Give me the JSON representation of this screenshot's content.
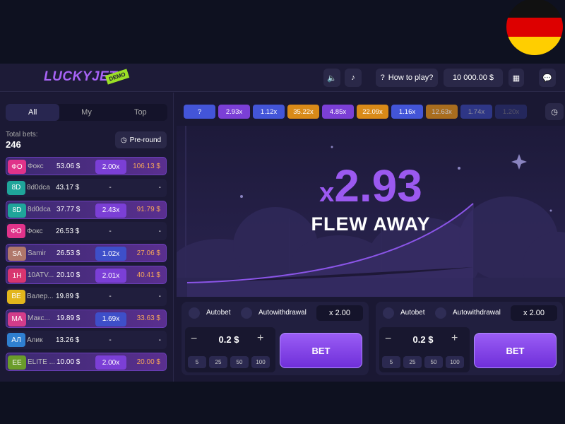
{
  "header": {
    "logo": "LUCKYJET",
    "logo_badge": "DEMO",
    "how_to_play": "How to play?",
    "balance": "10 000.00 $"
  },
  "sidebar": {
    "tabs": [
      "All",
      "My",
      "Top"
    ],
    "total_bets_label": "Total bets:",
    "total_bets": "246",
    "pre_round": "Pre-round",
    "bets": [
      {
        "initials": "ФО",
        "color": "#e0338a",
        "name": "Фокс",
        "bet": "53.06 $",
        "multiplier": "2.00x",
        "payout": "106.13 $",
        "chip_color": "#7b3fd6"
      },
      {
        "initials": "8D",
        "color": "#1fa59a",
        "name": "8d0dca",
        "bet": "43.17 $",
        "multiplier": "-",
        "payout": "-"
      },
      {
        "initials": "8D",
        "color": "#1fa59a",
        "name": "8d0dca",
        "bet": "37.77 $",
        "multiplier": "2.43x",
        "payout": "91.79 $",
        "chip_color": "#7b3fd6"
      },
      {
        "initials": "ФО",
        "color": "#e0338a",
        "name": "Фокс",
        "bet": "26.53 $",
        "multiplier": "-",
        "payout": "-"
      },
      {
        "initials": "SA",
        "color": "#b0776a",
        "name": "Samir",
        "bet": "26.53 $",
        "multiplier": "1.02x",
        "payout": "27.06 $",
        "chip_color": "#3e4fc9"
      },
      {
        "initials": "1H",
        "color": "#d8356f",
        "name": "10ATV...",
        "bet": "20.10 $",
        "multiplier": "2.01x",
        "payout": "40.41 $",
        "chip_color": "#7b3fd6"
      },
      {
        "initials": "BE",
        "color": "#e2b61c",
        "name": "Валер...",
        "bet": "19.89 $",
        "multiplier": "-",
        "payout": "-"
      },
      {
        "initials": "MA",
        "color": "#d23c8a",
        "name": "Макс...",
        "bet": "19.89 $",
        "multiplier": "1.69x",
        "payout": "33.63 $",
        "chip_color": "#3e4fc9"
      },
      {
        "initials": "АЛ",
        "color": "#2f7fd0",
        "name": "Алик",
        "bet": "13.26 $",
        "multiplier": "-",
        "payout": "-"
      },
      {
        "initials": "EE",
        "color": "#6a9c2a",
        "name": "ELITE ...",
        "bet": "10.00 $",
        "multiplier": "2.00x",
        "payout": "20.00 $",
        "chip_color": "#7b3fd6"
      }
    ]
  },
  "history": [
    {
      "label": "?",
      "color": "#4355d8"
    },
    {
      "label": "2.93x",
      "color": "#7b3fd6"
    },
    {
      "label": "1.12x",
      "color": "#4355d8"
    },
    {
      "label": "35.22x",
      "color": "#d98a18"
    },
    {
      "label": "4.85x",
      "color": "#7b3fd6"
    },
    {
      "label": "22.09x",
      "color": "#d98a18"
    },
    {
      "label": "1.16x",
      "color": "#4355d8"
    },
    {
      "label": "12.63x",
      "color": "#d98a18"
    },
    {
      "label": "1.74x",
      "color": "#4355d8"
    },
    {
      "label": "1.20x",
      "color": "#4355d8"
    }
  ],
  "game": {
    "multiplier_prefix": "x",
    "multiplier": "2.93",
    "status": "FLEW AWAY"
  },
  "bet_panels": [
    {
      "autobet": "Autobet",
      "autowithdrawal": "Autowithdrawal",
      "withdraw_multiplier": "x 2.00",
      "minus": "−",
      "amount": "0.2 $",
      "plus": "+",
      "quick_amounts": [
        "5",
        "25",
        "50",
        "100"
      ],
      "button": "BET"
    },
    {
      "autobet": "Autobet",
      "autowithdrawal": "Autowithdrawal",
      "withdraw_multiplier": "x 2.00",
      "minus": "−",
      "amount": "0.2 $",
      "plus": "+",
      "quick_amounts": [
        "5",
        "25",
        "50",
        "100"
      ],
      "button": "BET"
    }
  ]
}
